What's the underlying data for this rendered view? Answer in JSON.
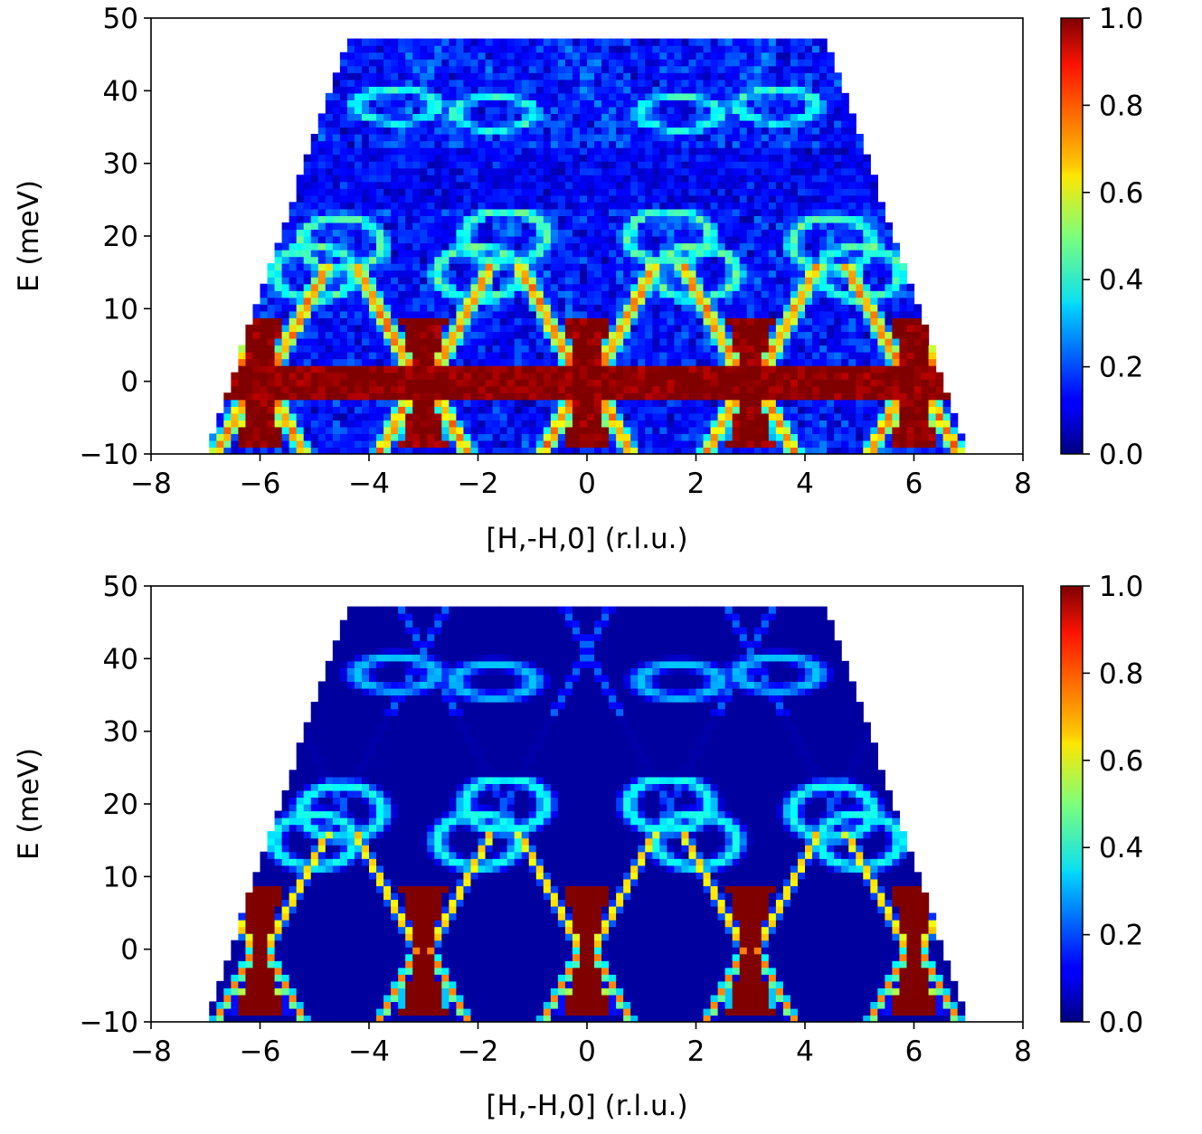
{
  "chart_data": [
    {
      "type": "heatmap",
      "panel": "top",
      "xlabel": "[H,-H,0] (r.l.u.)",
      "ylabel": "E (meV)",
      "xlim": [
        -8,
        8
      ],
      "ylim": [
        -10,
        50
      ],
      "xticks": [
        -8,
        -6,
        -4,
        -2,
        0,
        2,
        4,
        6,
        8
      ],
      "xtick_labels": [
        "−8",
        "−6",
        "−4",
        "−2",
        "0",
        "2",
        "4",
        "6",
        "8"
      ],
      "yticks": [
        -10,
        0,
        10,
        20,
        30,
        40,
        50
      ],
      "ytick_labels": [
        "−10",
        "0",
        "10",
        "20",
        "30",
        "40",
        "50"
      ],
      "colorbar": {
        "range": [
          0.0,
          1.0
        ],
        "ticks": [
          0.0,
          0.2,
          0.4,
          0.6,
          0.8,
          1.0
        ],
        "tick_labels": [
          "0.0",
          "0.2",
          "0.4",
          "0.6",
          "0.8",
          "1.0"
        ],
        "colormap": "jet"
      },
      "data_coverage": {
        "E_max": 47,
        "H_min_at_Emin": -7.0,
        "H_max_at_Emin": 7.0,
        "H_edge_at_Emax": 4.4
      },
      "dispersion_cone_centers": [
        -6,
        -3,
        0,
        3,
        6
      ],
      "elastic_band": {
        "E_range": [
          -2.5,
          2.5
        ],
        "intensity": 1.0
      },
      "noisy": true
    },
    {
      "type": "heatmap",
      "panel": "bottom",
      "xlabel": "[H,-H,0] (r.l.u.)",
      "ylabel": "E (meV)",
      "xlim": [
        -8,
        8
      ],
      "ylim": [
        -10,
        50
      ],
      "xticks": [
        -8,
        -6,
        -4,
        -2,
        0,
        2,
        4,
        6,
        8
      ],
      "xtick_labels": [
        "−8",
        "−6",
        "−4",
        "−2",
        "0",
        "2",
        "4",
        "6",
        "8"
      ],
      "yticks": [
        -10,
        0,
        10,
        20,
        30,
        40,
        50
      ],
      "ytick_labels": [
        "−10",
        "0",
        "10",
        "20",
        "30",
        "40",
        "50"
      ],
      "colorbar": {
        "range": [
          0.0,
          1.0
        ],
        "ticks": [
          0.0,
          0.2,
          0.4,
          0.6,
          0.8,
          1.0
        ],
        "tick_labels": [
          "0.0",
          "0.2",
          "0.4",
          "0.6",
          "0.8",
          "1.0"
        ],
        "colormap": "jet"
      },
      "data_coverage": {
        "E_max": 47,
        "H_min_at_Emin": -7.0,
        "H_max_at_Emin": 7.0,
        "H_edge_at_Emax": 4.4
      },
      "dispersion_cone_centers": [
        -6,
        -3,
        0,
        3,
        6
      ],
      "noisy": false
    }
  ]
}
